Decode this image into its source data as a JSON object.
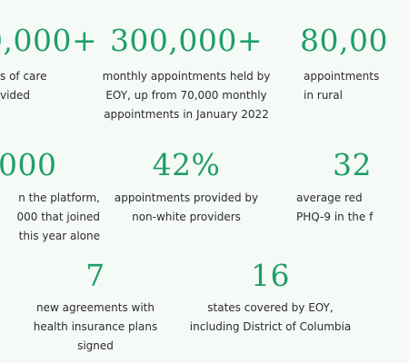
{
  "theme": {
    "accent": "#1e9e6b",
    "text": "#2b2b2b",
    "background": "#f6faf7"
  },
  "stats": [
    {
      "id": "hours-of-care",
      "value": "0,000+",
      "description": "s of care\nvided"
    },
    {
      "id": "monthly-appointments",
      "value": "300,000+",
      "description": "monthly appointments held by\nEOY, up from 70,000 monthly\nappointments in January 2022"
    },
    {
      "id": "rural-appointments",
      "value": "80,00",
      "description": "appointments\nin rural"
    },
    {
      "id": "providers-on-platform",
      "value": "000",
      "description": "n the platform,\n000 that joined\nthis year alone"
    },
    {
      "id": "non-white-providers",
      "value": "42%",
      "description": "appointments provided by\nnon-white providers"
    },
    {
      "id": "phq9-reduction",
      "value": "32",
      "description": "average red\nPHQ-9 in the f"
    },
    {
      "id": "health-insurance-agreements",
      "value": "7",
      "description": "new agreements with\nhealth insurance plans signed"
    },
    {
      "id": "states-covered",
      "value": "16",
      "description": "states covered by EOY,\nincluding District of Columbia"
    }
  ]
}
